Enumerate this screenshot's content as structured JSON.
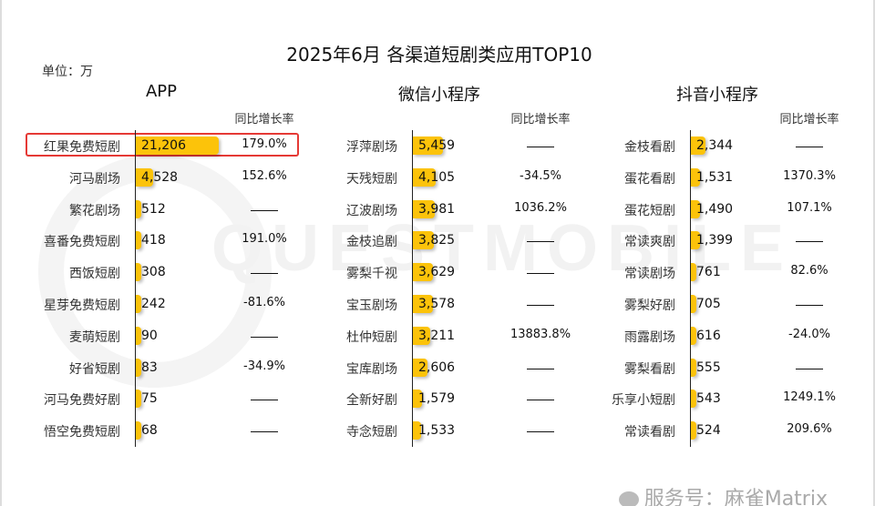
{
  "chart_data": {
    "type": "bar",
    "title": "2025年6月 各渠道短剧类应用TOP10",
    "unit": "单位：万",
    "growth_header": "同比增长率",
    "panels": [
      {
        "name": "APP",
        "categories": [
          "红果免费短剧",
          "河马剧场",
          "繁花剧场",
          "喜番免费短剧",
          "西饭短剧",
          "星芽免费短剧",
          "麦萌短剧",
          "好省短剧",
          "河马免费好剧",
          "悟空免费短剧"
        ],
        "values": [
          21206,
          4528,
          512,
          418,
          308,
          242,
          90,
          83,
          75,
          68
        ],
        "labels": [
          "21,206",
          "4,528",
          "512",
          "418",
          "308",
          "242",
          "90",
          "83",
          "75",
          "68"
        ],
        "growth": [
          "179.0%",
          "152.6%",
          null,
          "191.0%",
          null,
          "-81.6%",
          null,
          "-34.9%",
          null,
          null
        ]
      },
      {
        "name": "微信小程序",
        "categories": [
          "浮萍剧场",
          "天残短剧",
          "辽波剧场",
          "金枝追剧",
          "雾梨千视",
          "宝玉剧场",
          "杜仲短剧",
          "宝库剧场",
          "全新好剧",
          "寺念短剧"
        ],
        "values": [
          5459,
          4105,
          3981,
          3825,
          3629,
          3578,
          3211,
          2606,
          1579,
          1533
        ],
        "labels": [
          "5,459",
          "4,105",
          "3,981",
          "3,825",
          "3,629",
          "3,578",
          "3,211",
          "2,606",
          "1,579",
          "1,533"
        ],
        "growth": [
          null,
          "-34.5%",
          "1036.2%",
          null,
          null,
          null,
          "13883.8%",
          null,
          null,
          null
        ]
      },
      {
        "name": "抖音小程序",
        "categories": [
          "金枝看剧",
          "蛋花看剧",
          "蛋花短剧",
          "常读爽剧",
          "常读剧场",
          "雾梨好剧",
          "雨露剧场",
          "雾梨看剧",
          "乐享小短剧",
          "常读看剧"
        ],
        "values": [
          2344,
          1531,
          1490,
          1399,
          761,
          705,
          616,
          555,
          543,
          524
        ],
        "labels": [
          "2,344",
          "1,531",
          "1,490",
          "1,399",
          "761",
          "705",
          "616",
          "555",
          "543",
          "524"
        ],
        "growth": [
          null,
          "1370.3%",
          "107.1%",
          null,
          "82.6%",
          null,
          "-24.0%",
          null,
          "1249.1%",
          "209.6%"
        ]
      }
    ],
    "highlighted": "红果免费短剧",
    "bar_color": "#fcc30a",
    "highlight_color": "#e53935"
  },
  "watermark": "QUESTMOBILE",
  "footer": "服务号：麻雀Matrix"
}
